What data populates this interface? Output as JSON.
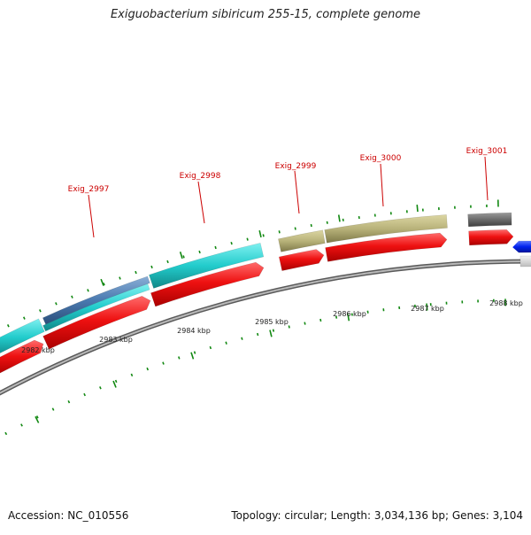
{
  "title": "Exiguobacterium sibiricum 255-15, complete genome",
  "footer": {
    "accession": "Accession: NC_010556",
    "summary": "Topology: circular; Length: 3,034,136 bp; Genes: 3,104"
  },
  "gene_labels": [
    "Exig_2997",
    "Exig_2998",
    "Exig_2999",
    "Exig_3000",
    "Exig_3001"
  ],
  "kbp_labels": [
    "2982 kbp",
    "2983 kbp",
    "2984 kbp",
    "2985 kbp",
    "2986 kbp",
    "2987 kbp",
    "2988 kbp"
  ],
  "colors": {
    "cds": "#ee1111",
    "cyan": "#22cccc",
    "steelblue": "#4a7ab0",
    "khaki": "#b8b27a",
    "gray": "#6a6a6a",
    "blue": "#0022ee",
    "backbone": "#8a8a8a",
    "tick": "#118811",
    "label": "#cc0000"
  }
}
